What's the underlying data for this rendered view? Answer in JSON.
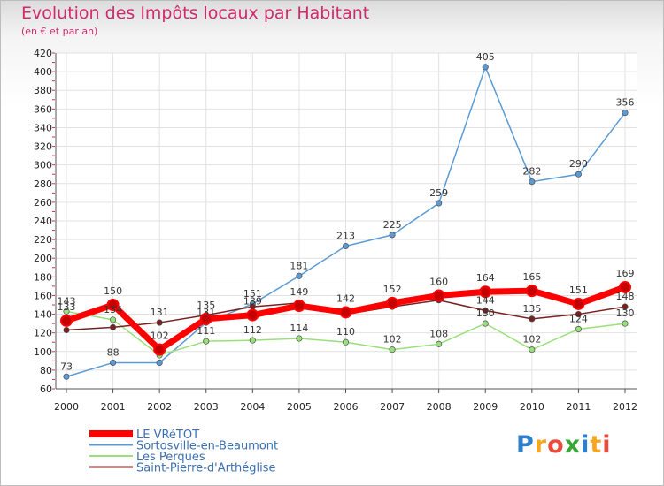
{
  "chart_data": {
    "type": "line",
    "title": "Evolution des Impôts locaux par Habitant",
    "subtitle": "(en € et par an)",
    "xlabel": "",
    "ylabel": "",
    "x": [
      "2000",
      "2001",
      "2002",
      "2003",
      "2004",
      "2005",
      "2006",
      "2007",
      "2008",
      "2009",
      "2010",
      "2011",
      "2012"
    ],
    "ylim": [
      60,
      420
    ],
    "yticks": [
      60,
      80,
      100,
      120,
      140,
      160,
      180,
      200,
      220,
      240,
      260,
      280,
      300,
      320,
      340,
      360,
      380,
      400,
      420
    ],
    "grid": true,
    "legend": "bottom-left",
    "series": [
      {
        "name": "LE VRéTOT",
        "color": "#ff0000",
        "values": [
          133,
          150,
          102,
          135,
          139,
          149,
          142,
          152,
          160,
          164,
          165,
          151,
          169
        ],
        "labels": [
          "133",
          "150",
          "102",
          "135",
          "139",
          "149",
          "142",
          "152",
          "160",
          "164",
          "165",
          "151",
          "169"
        ]
      },
      {
        "name": "Sortosville-en-Beaumont",
        "color": "#5b9bd5",
        "values": [
          73,
          88,
          88,
          131,
          151,
          181,
          213,
          225,
          259,
          405,
          282,
          290,
          356
        ],
        "labels": [
          "73",
          "88",
          "",
          "131",
          "151",
          "181",
          "213",
          "225",
          "259",
          "405",
          "282",
          "290",
          "356"
        ]
      },
      {
        "name": "Les Perques",
        "color": "#99e07a",
        "values": [
          143,
          134,
          96,
          111,
          112,
          114,
          110,
          102,
          108,
          130,
          102,
          124,
          130
        ],
        "labels": [
          "143",
          "134",
          "",
          "111",
          "112",
          "114",
          "110",
          "102",
          "108",
          "130",
          "102",
          "124",
          "130"
        ]
      },
      {
        "name": "Saint-Pierre-d'Arthéglise",
        "color": "#7a2020",
        "values": [
          123,
          126,
          131,
          139,
          148,
          152,
          140,
          148,
          155,
          144,
          135,
          140,
          148
        ],
        "labels": [
          "",
          "",
          "131",
          "",
          "",
          "",
          "",
          "",
          "",
          "144",
          "135",
          "",
          "148"
        ]
      }
    ]
  },
  "watermark": "Proxiti"
}
